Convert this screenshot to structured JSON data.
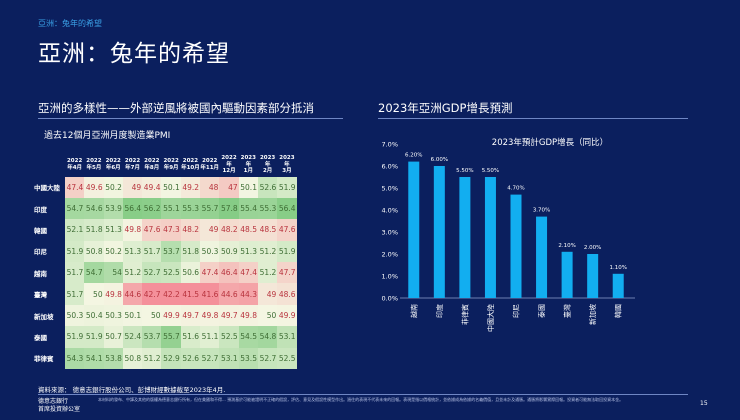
{
  "header": {
    "breadcrumb": "亞洲：兔年的希望",
    "title": "亞洲：兔年的希望"
  },
  "left_section": {
    "heading": "亞洲的多樣性——外部逆風將被國內驅動因素部分抵消",
    "subtitle": "過去12個月亞洲月度製造業PMI"
  },
  "right_section": {
    "heading": "2023年亞洲GDP增長預測"
  },
  "chart_data": [
    {
      "type": "heatmap",
      "title": "過去12個月亞洲月度製造業PMI",
      "columns": [
        [
          "2022",
          "年4月"
        ],
        [
          "2022",
          "年5月"
        ],
        [
          "2022",
          "年6月"
        ],
        [
          "2022",
          "年7月"
        ],
        [
          "2022",
          "年8月"
        ],
        [
          "2022",
          "年9月"
        ],
        [
          "2022",
          "年10月"
        ],
        [
          "2022",
          "年11月"
        ],
        [
          "2022年",
          "12月"
        ],
        [
          "2023年",
          "1月"
        ],
        [
          "2023年",
          "2月"
        ],
        [
          "2023年",
          "3月"
        ]
      ],
      "rows": [
        {
          "name": "中國大陸",
          "values": [
            47.4,
            49.6,
            50.2,
            49,
            49.4,
            50.1,
            49.2,
            48,
            47,
            50.1,
            52.6,
            51.9
          ]
        },
        {
          "name": "印度",
          "values": [
            54.7,
            54.6,
            53.9,
            56.4,
            56.2,
            55.1,
            55.3,
            55.7,
            57.8,
            55.4,
            55.3,
            56.4
          ]
        },
        {
          "name": "韓國",
          "values": [
            52.1,
            51.8,
            51.3,
            49.8,
            47.6,
            47.3,
            48.2,
            49,
            48.2,
            48.5,
            48.5,
            47.6
          ]
        },
        {
          "name": "印尼",
          "values": [
            51.9,
            50.8,
            50.2,
            51.3,
            51.7,
            53.7,
            51.8,
            50.3,
            50.9,
            51.3,
            51.2,
            51.9
          ]
        },
        {
          "name": "越南",
          "values": [
            51.7,
            54.7,
            54,
            51.2,
            52.7,
            52.5,
            50.6,
            47.4,
            46.4,
            47.4,
            51.2,
            47.7
          ]
        },
        {
          "name": "臺灣",
          "values": [
            51.7,
            50,
            49.8,
            44.6,
            42.7,
            42.2,
            41.5,
            41.6,
            44.6,
            44.3,
            49,
            48.6
          ]
        },
        {
          "name": "新加坡",
          "values": [
            50.3,
            50.4,
            50.3,
            50.1,
            50,
            49.9,
            49.7,
            49.8,
            49.7,
            49.8,
            50,
            49.9
          ]
        },
        {
          "name": "泰國",
          "values": [
            51.9,
            51.9,
            50.7,
            52.4,
            53.7,
            55.7,
            51.6,
            51.1,
            52.5,
            54.5,
            54.8,
            53.1
          ]
        },
        {
          "name": "菲律賓",
          "values": [
            54.3,
            54.1,
            53.8,
            50.8,
            51.2,
            52.9,
            52.6,
            52.7,
            53.1,
            53.5,
            52.7,
            52.5
          ]
        }
      ],
      "colors": {
        "low": "#f4909a",
        "mid": "#f4f6e2",
        "high": "#86cc86"
      }
    },
    {
      "type": "bar",
      "title": "2023年預計GDP增長（同比）",
      "categories": [
        "越南",
        "印度",
        "菲律賓",
        "中國大陸",
        "印尼",
        "泰國",
        "臺灣",
        "新加坡",
        "韓國"
      ],
      "values": [
        6.2,
        6.0,
        5.5,
        5.5,
        4.7,
        3.7,
        2.1,
        2.0,
        1.1
      ],
      "data_labels": [
        "6.20%",
        "6.00%",
        "5.50%",
        "5.50%",
        "4.70%",
        "3.70%",
        "2.10%",
        "2.00%",
        "1.10%"
      ],
      "yticks": [
        "0.0%",
        "1.0%",
        "2.0%",
        "3.0%",
        "4.0%",
        "5.0%",
        "6.0%",
        "7.0%"
      ],
      "ylim": [
        0,
        7
      ],
      "bar_color": "#12aef0",
      "grid": false
    }
  ],
  "footer": {
    "source": "資料來源： 德意志銀行股份公司、彭博財經數據截至2023年4月.",
    "org_line1": "德意志銀行",
    "org_line2": "首席投資辦公室",
    "disclaimer": "本材料的發布、中譯及其他的版權為德意志銀行所有，但在美國和不得... 預測基於可能被證明不正確的假設，評估、意見及假設性模型作出。過往的表現不代表未來的回報。表現是指以價格統計，並依據成為依據的名義價值，且並未計及通脹。通脹將影響實際回報。投資者可能無法取回投資本金。",
    "page_number": "15"
  }
}
